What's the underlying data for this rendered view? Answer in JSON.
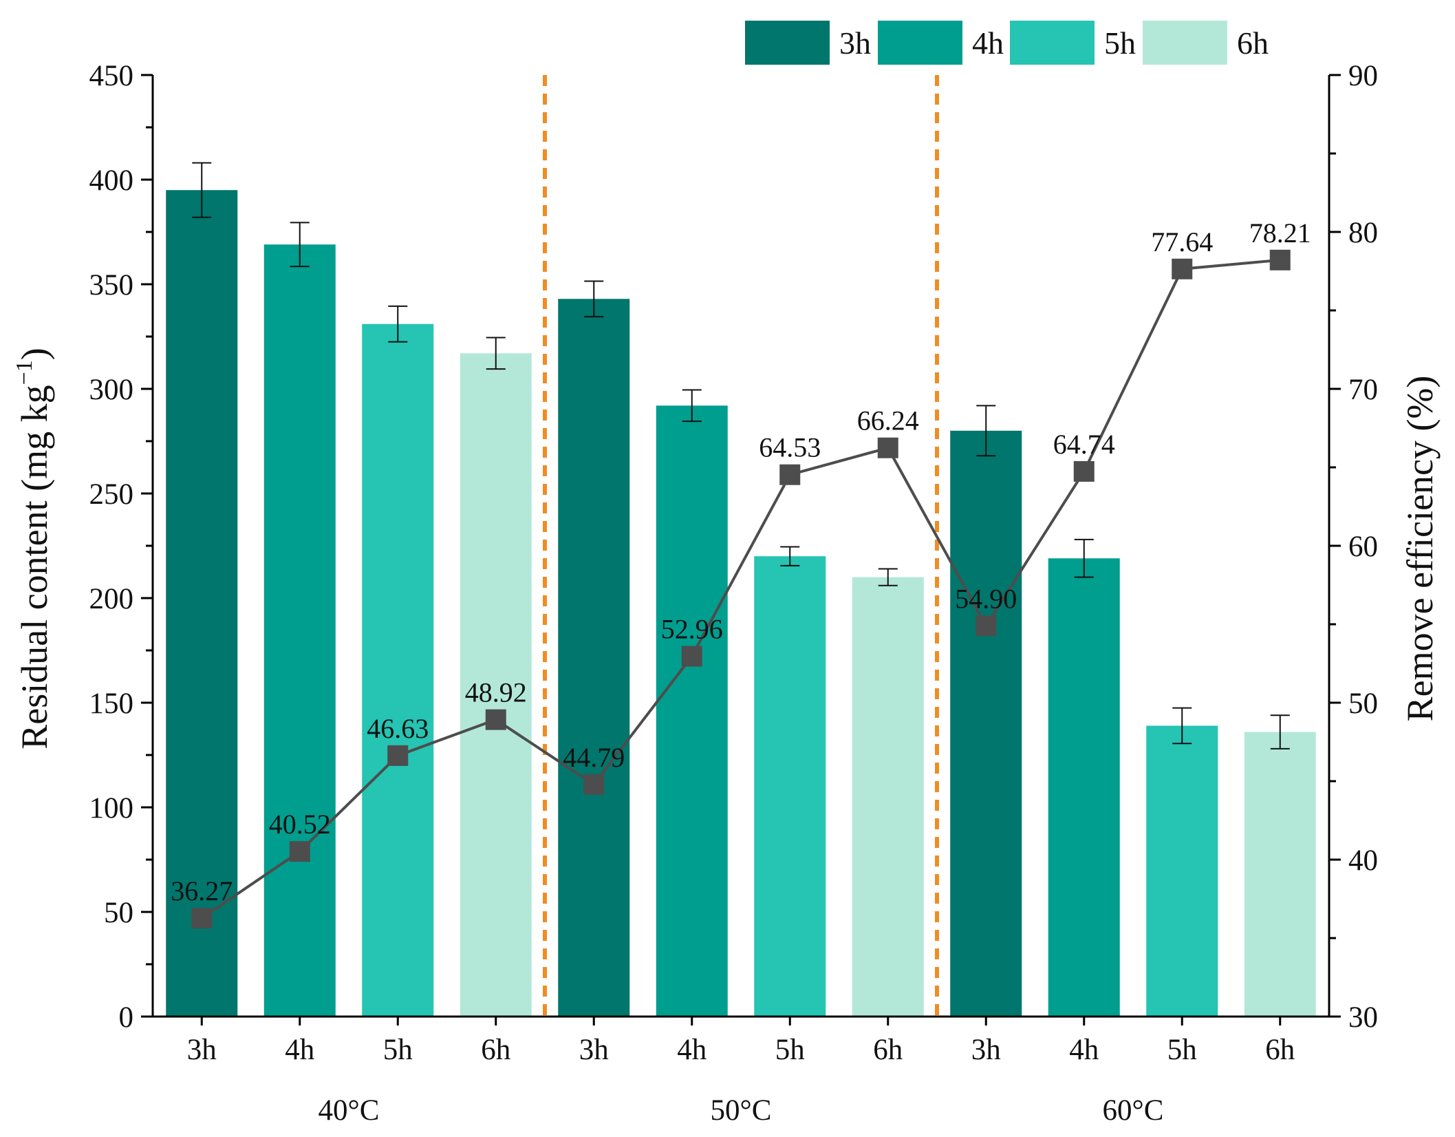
{
  "chart_data": {
    "type": "bar+line",
    "ylabel_left": "Residual content (mg kg",
    "ylabel_left_sup": "−1",
    "ylabel_left_close": ")",
    "ylabel_right": "Remove efficiency (%)",
    "ylim_left": [
      0,
      450
    ],
    "yticks_left": [
      0,
      50,
      100,
      150,
      200,
      250,
      300,
      350,
      400,
      450
    ],
    "ylim_right": [
      30,
      90
    ],
    "yticks_right": [
      30,
      40,
      50,
      60,
      70,
      80,
      90
    ],
    "legend": [
      "3h",
      "4h",
      "5h",
      "6h"
    ],
    "legend_position": "top",
    "colors": {
      "3h": "#00766c",
      "4h": "#009e8f",
      "5h": "#25c4b3",
      "6h": "#b3e8d9",
      "line": "#4d4d4d",
      "divider": "#f08c24",
      "axis": "#000000"
    },
    "groups": [
      {
        "label": "40°C",
        "bars": [
          {
            "time": "3h",
            "residual": 395,
            "error": 13
          },
          {
            "time": "4h",
            "residual": 369,
            "error": 10.5
          },
          {
            "time": "5h",
            "residual": 331,
            "error": 8.5
          },
          {
            "time": "6h",
            "residual": 317,
            "error": 7.5
          }
        ],
        "efficiency": [
          36.27,
          40.52,
          46.63,
          48.92
        ],
        "efficiency_labels": [
          "36.27",
          "40.52",
          "46.63",
          "48.92"
        ]
      },
      {
        "label": "50°C",
        "bars": [
          {
            "time": "3h",
            "residual": 343,
            "error": 8.5
          },
          {
            "time": "4h",
            "residual": 292,
            "error": 7.5
          },
          {
            "time": "5h",
            "residual": 220,
            "error": 4.5
          },
          {
            "time": "6h",
            "residual": 210,
            "error": 4
          }
        ],
        "efficiency": [
          44.79,
          52.96,
          64.53,
          66.24
        ],
        "efficiency_labels": [
          "44.79",
          "52.96",
          "64.53",
          "66.24"
        ]
      },
      {
        "label": "60°C",
        "bars": [
          {
            "time": "3h",
            "residual": 280,
            "error": 12
          },
          {
            "time": "4h",
            "residual": 219,
            "error": 9
          },
          {
            "time": "5h",
            "residual": 139,
            "error": 8.5
          },
          {
            "time": "6h",
            "residual": 136,
            "error": 8
          }
        ],
        "efficiency": [
          54.9,
          64.74,
          77.64,
          78.21
        ],
        "efficiency_labels": [
          "54.90",
          "64.74",
          "77.64",
          "78.21"
        ]
      }
    ]
  }
}
